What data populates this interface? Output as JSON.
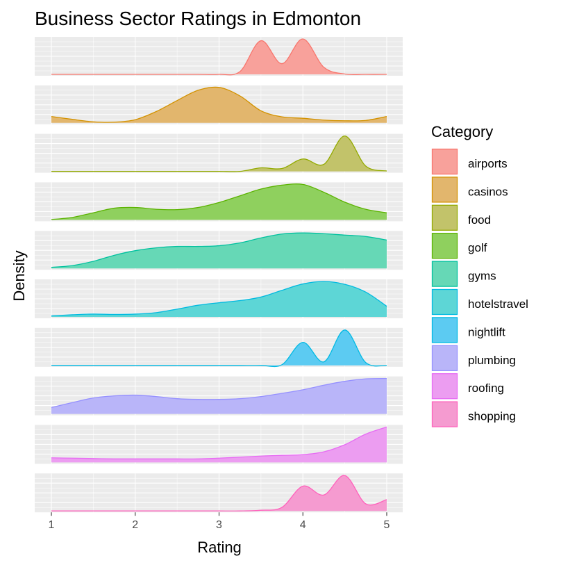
{
  "chart_data": {
    "type": "area",
    "title": "Business Sector Ratings in Edmonton",
    "xlabel": "Rating",
    "ylabel": "Density",
    "xlim": [
      1,
      5
    ],
    "x_ticks": [
      "1",
      "2",
      "3",
      "4",
      "5"
    ],
    "grid": true,
    "legend_title": "Category",
    "legend_position": "right",
    "x": [
      1,
      1.25,
      1.5,
      1.75,
      2,
      2.25,
      2.5,
      2.75,
      3,
      3.25,
      3.5,
      3.75,
      4,
      4.25,
      4.5,
      4.75,
      5
    ],
    "series": [
      {
        "name": "airports",
        "color": "#F8766D",
        "fill": "#F8A19B",
        "values": [
          0,
          0,
          0,
          0,
          0,
          0,
          0,
          0,
          0,
          0.08,
          0.95,
          0.3,
          1.0,
          0.2,
          0.01,
          0,
          0
        ]
      },
      {
        "name": "casinos",
        "color": "#D39200",
        "fill": "#E2B66D",
        "values": [
          0.18,
          0.1,
          0.03,
          0.02,
          0.09,
          0.32,
          0.63,
          0.92,
          1.0,
          0.76,
          0.34,
          0.17,
          0.13,
          0.08,
          0.06,
          0.07,
          0.18
        ]
      },
      {
        "name": "food",
        "color": "#93AA00",
        "fill": "#C2C36A",
        "values": [
          0,
          0,
          0,
          0,
          0,
          0,
          0,
          0,
          0,
          0,
          0.1,
          0.08,
          0.35,
          0.2,
          1.0,
          0.15,
          0.01
        ]
      },
      {
        "name": "golf",
        "color": "#5BB300",
        "fill": "#8FD05E",
        "values": [
          0.01,
          0.07,
          0.2,
          0.33,
          0.35,
          0.3,
          0.29,
          0.35,
          0.49,
          0.68,
          0.87,
          0.98,
          1.0,
          0.78,
          0.5,
          0.3,
          0.2
        ]
      },
      {
        "name": "gyms",
        "color": "#00C19F",
        "fill": "#66D8B6",
        "values": [
          0.03,
          0.08,
          0.2,
          0.37,
          0.5,
          0.58,
          0.62,
          0.62,
          0.64,
          0.72,
          0.86,
          0.97,
          1.0,
          0.98,
          0.94,
          0.9,
          0.8
        ]
      },
      {
        "name": "hotelstravel",
        "color": "#00BAE0",
        "fill": "#5DD6D6",
        "values": [
          0.03,
          0.06,
          0.08,
          0.07,
          0.08,
          0.12,
          0.22,
          0.33,
          0.4,
          0.46,
          0.56,
          0.75,
          0.93,
          1.0,
          0.92,
          0.7,
          0.3
        ]
      },
      {
        "name": "nightlift",
        "color": "#00B9E3",
        "fill": "#5CCBF2",
        "values": [
          0,
          0,
          0,
          0,
          0,
          0,
          0,
          0,
          0,
          0,
          0,
          0.02,
          0.65,
          0.1,
          1.0,
          0.08,
          0
        ]
      },
      {
        "name": "plumbing",
        "color": "#9590FF",
        "fill": "#B9B5F9",
        "values": [
          0.18,
          0.32,
          0.45,
          0.51,
          0.53,
          0.49,
          0.43,
          0.41,
          0.41,
          0.43,
          0.49,
          0.58,
          0.68,
          0.81,
          0.92,
          0.99,
          1.0
        ]
      },
      {
        "name": "roofing",
        "color": "#E76BF3",
        "fill": "#EC9DF1",
        "values": [
          0.13,
          0.12,
          0.11,
          0.1,
          0.1,
          0.1,
          0.1,
          0.1,
          0.12,
          0.15,
          0.18,
          0.2,
          0.22,
          0.3,
          0.5,
          0.8,
          1.0
        ]
      },
      {
        "name": "shopping",
        "color": "#FF62BC",
        "fill": "#F59BD0",
        "values": [
          0,
          0,
          0,
          0,
          0,
          0,
          0,
          0,
          0,
          0,
          0.02,
          0.1,
          0.7,
          0.45,
          1.0,
          0.2,
          0.32
        ]
      }
    ]
  }
}
